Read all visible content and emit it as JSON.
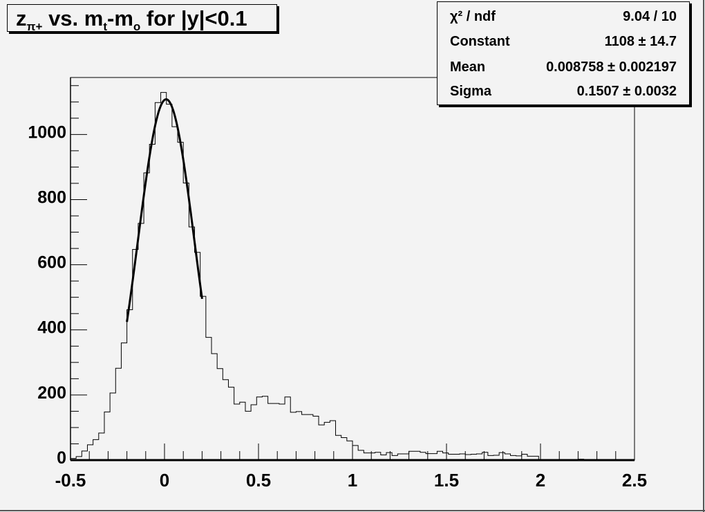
{
  "chart_data": {
    "type": "histogram",
    "title": {
      "main": "z",
      "sub": "π+",
      "rest1": " vs. m",
      "sub2": "t",
      "rest2": "-m",
      "sub3": "o",
      "rest3": " for |y|<0.1"
    },
    "xlim": [
      -0.5,
      2.5
    ],
    "ylim": [
      0,
      1175
    ],
    "x_ticks": [
      "-0.5",
      "0",
      "0.5",
      "1",
      "1.5",
      "2",
      "2.5"
    ],
    "y_ticks": [
      "0",
      "200",
      "400",
      "600",
      "800",
      "1000"
    ],
    "bin_width": 0.03,
    "bin_start": -0.5,
    "values": [
      5,
      11,
      28,
      47,
      63,
      83,
      148,
      206,
      282,
      360,
      462,
      647,
      727,
      882,
      970,
      1098,
      1129,
      1093,
      1024,
      976,
      851,
      716,
      638,
      503,
      377,
      327,
      281,
      247,
      224,
      172,
      178,
      150,
      170,
      194,
      196,
      174,
      174,
      172,
      194,
      147,
      149,
      140,
      140,
      135,
      108,
      116,
      121,
      76,
      69,
      59,
      45,
      30,
      22,
      22,
      24,
      16,
      23,
      14,
      19,
      19,
      27,
      27,
      24,
      20,
      20,
      27,
      22,
      18,
      18,
      19,
      17,
      18,
      19,
      24,
      14,
      15,
      23,
      19,
      14,
      13,
      18,
      12,
      12,
      2,
      1,
      2,
      1,
      1,
      2,
      1,
      3,
      2,
      1,
      1,
      0,
      1,
      0,
      0,
      1,
      0
    ],
    "fit": {
      "function": "gaus",
      "constant": 1108,
      "mean": 0.008758,
      "sigma": 0.1507,
      "range": [
        -0.2,
        0.2
      ]
    },
    "stats": [
      {
        "label": "χ² / ndf",
        "value": "9.04 / 10"
      },
      {
        "label": "Constant",
        "value": "1108 ± 14.7"
      },
      {
        "label": "Mean",
        "value": "0.008758 ± 0.002197"
      },
      {
        "label": "Sigma",
        "value": "0.1507 ± 0.0032"
      }
    ],
    "grid": false
  }
}
